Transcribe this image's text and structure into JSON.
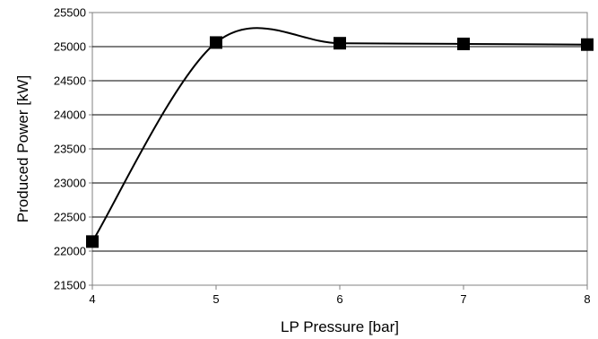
{
  "chart_data": {
    "type": "line",
    "title": "",
    "xlabel": "LP Pressure [bar]",
    "ylabel": "Produced Power [kW]",
    "xlim": [
      4,
      8
    ],
    "ylim": [
      21500,
      25500
    ],
    "x_ticks": [
      4,
      5,
      6,
      7,
      8
    ],
    "y_ticks": [
      21500,
      22000,
      22500,
      23000,
      23500,
      24000,
      24500,
      25000,
      25500
    ],
    "grid": "horizontal",
    "legend": "none",
    "smooth": true,
    "series": [
      {
        "x": [
          4,
          5,
          6,
          7,
          8
        ],
        "y": [
          22140,
          25060,
          25050,
          25040,
          25030
        ],
        "color": "#000000",
        "marker": "square"
      }
    ]
  }
}
